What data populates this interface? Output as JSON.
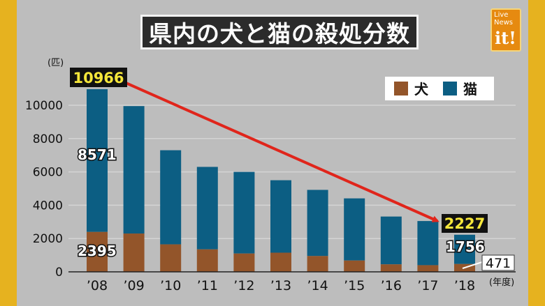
{
  "header": {
    "title": "県内の犬と猫の殺処分数"
  },
  "logo": {
    "line1": "Live",
    "line2": "News",
    "line3": "it!"
  },
  "chart_data": {
    "type": "bar",
    "stacked": true,
    "categories": [
      "’08",
      "’09",
      "’10",
      "’11",
      "’12",
      "’13",
      "’14",
      "’15",
      "’16",
      "’17",
      "’18"
    ],
    "series": [
      {
        "name": "犬",
        "values": [
          2395,
          2300,
          1650,
          1350,
          1100,
          1150,
          950,
          680,
          450,
          400,
          471
        ]
      },
      {
        "name": "猫",
        "values": [
          8571,
          7650,
          5650,
          4950,
          4900,
          4350,
          3970,
          3730,
          2870,
          2650,
          1756
        ]
      }
    ],
    "colors": {
      "dog": "#93552a",
      "cat": "#0c5e83"
    },
    "totals_highlight": {
      "first": "10966",
      "last": "2227"
    },
    "labels": {
      "dog_first": "2395",
      "cat_first": "8571",
      "dog_last": "471",
      "cat_last": "1756"
    },
    "ylabel": "(匹)",
    "xlabel": "(年度)",
    "ylim": [
      0,
      12000
    ],
    "yticks": [
      0,
      2000,
      4000,
      6000,
      8000,
      10000
    ],
    "grid": true,
    "legend_position": "top-right",
    "trend_arrow_color": "#e0251b"
  }
}
